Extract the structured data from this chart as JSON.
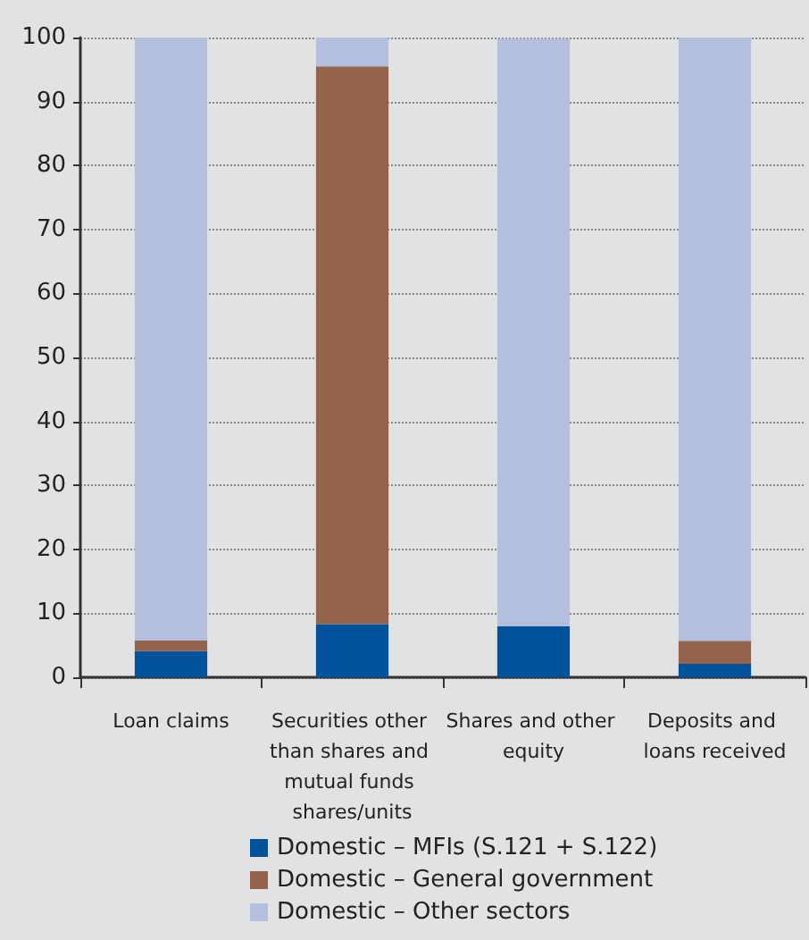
{
  "chart_data": {
    "type": "bar",
    "stacked": true,
    "categories": [
      "Loan claims",
      "Securities other than shares and mutual funds shares/units",
      "Shares and other equity",
      "Deposits and loans received"
    ],
    "series": [
      {
        "name": "Domestic – MFIs (S.121 + S.122)",
        "color": "#00529b",
        "values": [
          4.1,
          8.3,
          8.0,
          2.1
        ]
      },
      {
        "name": "Domestic – General government",
        "color": "#93634b",
        "values": [
          1.7,
          87.2,
          0,
          3.6
        ]
      },
      {
        "name": "Domestic – Other sectors",
        "color": "#b4bedf",
        "values": [
          94.2,
          4.5,
          91.8,
          94.3
        ]
      }
    ],
    "ylim": [
      0,
      100
    ],
    "yticks": [
      0,
      10,
      20,
      30,
      40,
      50,
      60,
      70,
      80,
      90,
      100
    ],
    "grid": "y",
    "legend": "bottom"
  }
}
